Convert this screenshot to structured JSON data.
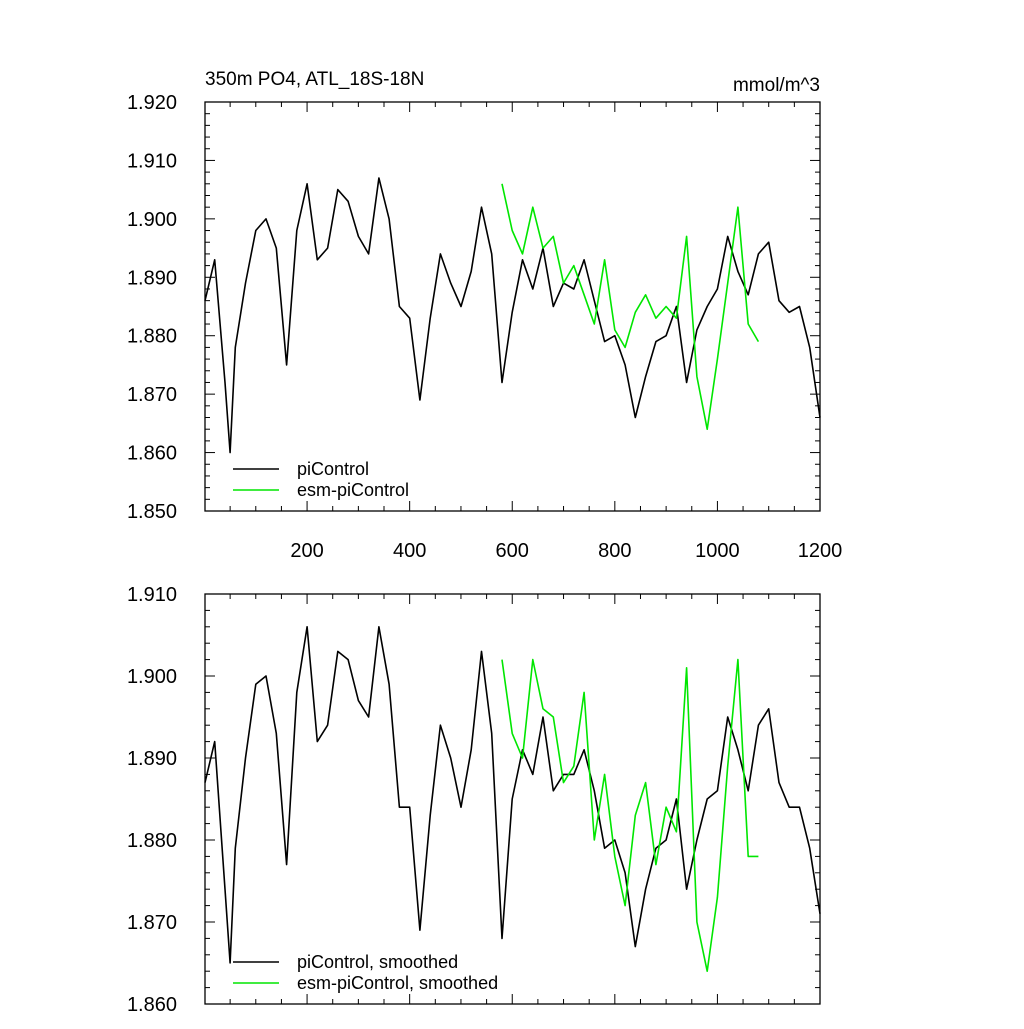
{
  "chart_data": [
    {
      "type": "line",
      "title": "350m PO4, ATL_18S-18N",
      "units": "mmol/m^3",
      "xlim": [
        1,
        1200
      ],
      "ylim": [
        1.85,
        1.92
      ],
      "xticks": [
        "200",
        "400",
        "600",
        "800",
        "1000",
        "1200"
      ],
      "yticks": [
        "1.850",
        "1.860",
        "1.870",
        "1.880",
        "1.890",
        "1.900",
        "1.910",
        "1.920"
      ],
      "legend_position": "bottom-left",
      "series": [
        {
          "name": "piControl",
          "color": "#000000",
          "x": [
            1,
            20,
            40,
            50,
            60,
            80,
            100,
            120,
            140,
            160,
            180,
            200,
            220,
            240,
            260,
            280,
            300,
            320,
            340,
            360,
            380,
            400,
            420,
            440,
            460,
            480,
            500,
            520,
            540,
            560,
            580,
            600,
            620,
            640,
            660,
            680,
            700,
            720,
            740,
            760,
            780,
            800,
            820,
            840,
            860,
            880,
            900,
            920,
            940,
            960,
            980,
            1000,
            1020,
            1040,
            1060,
            1080,
            1100,
            1120,
            1140,
            1160,
            1180,
            1200
          ],
          "values": [
            1.886,
            1.893,
            1.872,
            1.86,
            1.878,
            1.889,
            1.898,
            1.9,
            1.895,
            1.875,
            1.898,
            1.906,
            1.893,
            1.895,
            1.905,
            1.903,
            1.897,
            1.894,
            1.907,
            1.9,
            1.885,
            1.883,
            1.869,
            1.883,
            1.894,
            1.889,
            1.885,
            1.891,
            1.902,
            1.894,
            1.872,
            1.884,
            1.893,
            1.888,
            1.895,
            1.885,
            1.889,
            1.888,
            1.893,
            1.886,
            1.879,
            1.88,
            1.875,
            1.866,
            1.873,
            1.879,
            1.88,
            1.885,
            1.872,
            1.881,
            1.885,
            1.888,
            1.897,
            1.891,
            1.887,
            1.894,
            1.896,
            1.886,
            1.884,
            1.885,
            1.878,
            1.866
          ]
        },
        {
          "name": "esm-piControl",
          "color": "#00e600",
          "x": [
            580,
            600,
            620,
            640,
            660,
            680,
            700,
            720,
            740,
            760,
            780,
            800,
            820,
            840,
            860,
            880,
            900,
            920,
            940,
            960,
            980,
            1000,
            1020,
            1040,
            1060,
            1080
          ],
          "values": [
            1.906,
            1.898,
            1.894,
            1.902,
            1.895,
            1.897,
            1.889,
            1.892,
            1.887,
            1.882,
            1.893,
            1.881,
            1.878,
            1.884,
            1.887,
            1.883,
            1.885,
            1.883,
            1.897,
            1.873,
            1.864,
            1.876,
            1.889,
            1.902,
            1.882,
            1.879
          ]
        }
      ]
    },
    {
      "type": "line",
      "xlim": [
        1,
        1200
      ],
      "ylim": [
        1.86,
        1.91
      ],
      "yticks": [
        "1.860",
        "1.870",
        "1.880",
        "1.890",
        "1.900",
        "1.910"
      ],
      "legend_position": "bottom-left",
      "series": [
        {
          "name": "piControl, smoothed",
          "color": "#000000",
          "x": [
            1,
            20,
            40,
            50,
            60,
            80,
            100,
            120,
            140,
            160,
            180,
            200,
            220,
            240,
            260,
            280,
            300,
            320,
            340,
            360,
            380,
            400,
            420,
            440,
            460,
            480,
            500,
            520,
            540,
            560,
            580,
            600,
            620,
            640,
            660,
            680,
            700,
            720,
            740,
            760,
            780,
            800,
            820,
            840,
            860,
            880,
            900,
            920,
            940,
            960,
            980,
            1000,
            1020,
            1040,
            1060,
            1080,
            1100,
            1120,
            1140,
            1160,
            1180,
            1200
          ],
          "values": [
            1.887,
            1.892,
            1.874,
            1.865,
            1.879,
            1.89,
            1.899,
            1.9,
            1.893,
            1.877,
            1.898,
            1.906,
            1.892,
            1.894,
            1.903,
            1.902,
            1.897,
            1.895,
            1.906,
            1.899,
            1.884,
            1.884,
            1.869,
            1.883,
            1.894,
            1.89,
            1.884,
            1.891,
            1.903,
            1.893,
            1.868,
            1.885,
            1.891,
            1.888,
            1.895,
            1.886,
            1.888,
            1.888,
            1.891,
            1.886,
            1.879,
            1.88,
            1.876,
            1.867,
            1.874,
            1.879,
            1.88,
            1.885,
            1.874,
            1.88,
            1.885,
            1.886,
            1.895,
            1.891,
            1.886,
            1.894,
            1.896,
            1.887,
            1.884,
            1.884,
            1.879,
            1.871
          ]
        },
        {
          "name": "esm-piControl, smoothed",
          "color": "#00e600",
          "x": [
            580,
            600,
            620,
            640,
            660,
            680,
            700,
            720,
            740,
            760,
            780,
            800,
            820,
            840,
            860,
            880,
            900,
            920,
            940,
            960,
            980,
            1000,
            1020,
            1040,
            1060,
            1080
          ],
          "values": [
            1.902,
            1.893,
            1.89,
            1.902,
            1.896,
            1.895,
            1.887,
            1.889,
            1.898,
            1.88,
            1.888,
            1.878,
            1.872,
            1.883,
            1.887,
            1.877,
            1.884,
            1.881,
            1.901,
            1.87,
            1.864,
            1.873,
            1.889,
            1.902,
            1.878,
            1.878
          ]
        }
      ]
    }
  ]
}
